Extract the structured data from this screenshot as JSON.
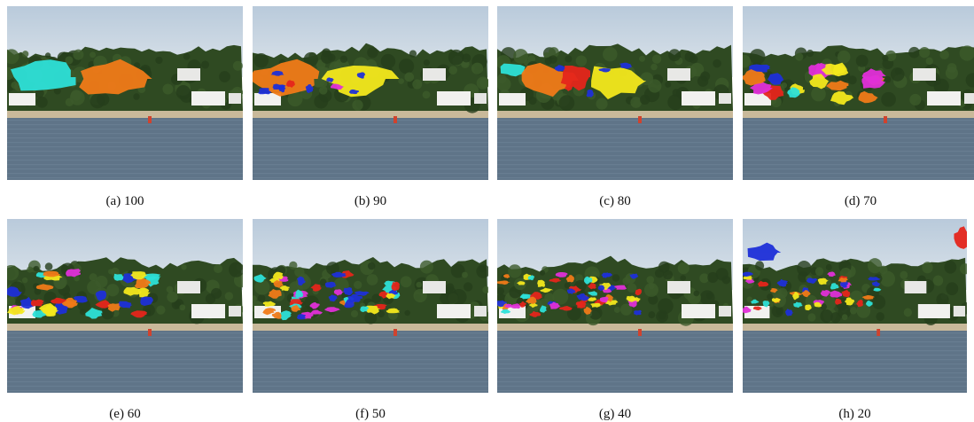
{
  "figure": {
    "panels": [
      {
        "caption": "(a) 100",
        "overlay_scheme": "two-large-segments"
      },
      {
        "caption": "(b) 90",
        "overlay_scheme": "orange-yellow-segments"
      },
      {
        "caption": "(c) 80",
        "overlay_scheme": "cyan-orange-red-yellow"
      },
      {
        "caption": "(d) 70",
        "overlay_scheme": "many-medium-segments"
      },
      {
        "caption": "(e) 60",
        "overlay_scheme": "smaller-multicolor-segments"
      },
      {
        "caption": "(f) 50",
        "overlay_scheme": "small-multicolor-segments"
      },
      {
        "caption": "(g) 40",
        "overlay_scheme": "fine-multicolor-segments"
      },
      {
        "caption": "(h) 20",
        "overlay_scheme": "sparse-segments-with-sky-blobs"
      }
    ],
    "colors": {
      "sky": "#c9d6e2",
      "trees": "#2f4a22",
      "beach": "#c9b99a",
      "water": "#5f7488",
      "cyan": "#2de0d8",
      "orange": "#f07a18",
      "yellow": "#f3e81c",
      "red": "#e5251b",
      "blue": "#1e2fd8",
      "magenta": "#e02fd8"
    }
  }
}
